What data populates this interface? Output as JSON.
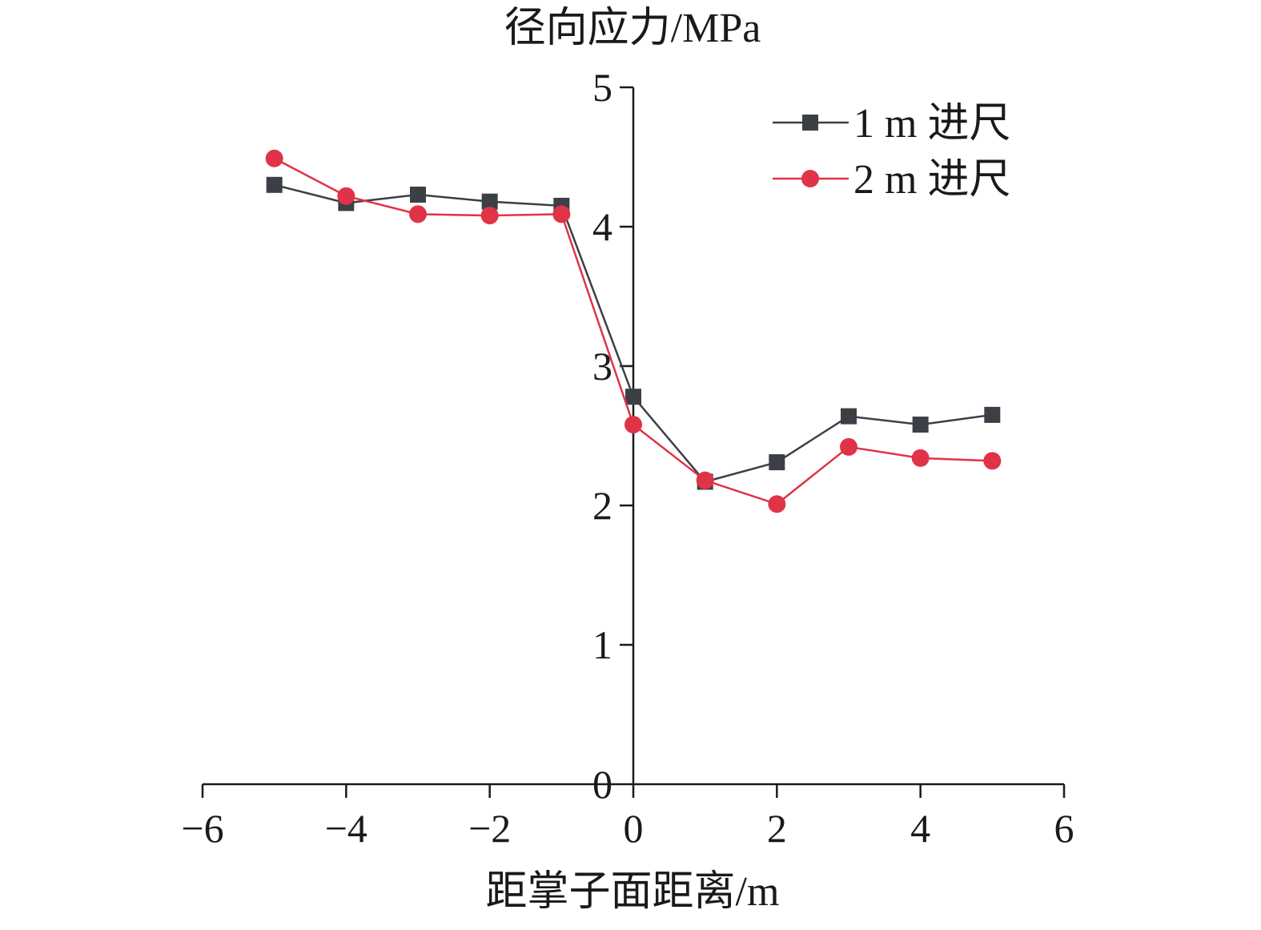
{
  "chart_data": {
    "type": "line",
    "title": "",
    "ylabel": "径向应力/MPa",
    "xlabel": "距掌子面距离/m",
    "xlim": [
      -6,
      6
    ],
    "ylim": [
      0,
      5
    ],
    "xticks": [
      -6,
      -4,
      -2,
      0,
      2,
      4,
      6
    ],
    "yticks": [
      0,
      1,
      2,
      3,
      4,
      5
    ],
    "xtick_labels": [
      "−6",
      "−4",
      "−2",
      "0",
      "2",
      "4",
      "6"
    ],
    "ytick_labels": [
      "0",
      "1",
      "2",
      "3",
      "4",
      "5"
    ],
    "grid": false,
    "legend_position": "top-right",
    "x": [
      -5,
      -4,
      -3,
      -2,
      -1,
      0,
      1,
      2,
      3,
      4,
      5
    ],
    "series": [
      {
        "name": "1 m 进尺",
        "color": "#3d3f47",
        "marker": "square",
        "values": [
          4.3,
          4.17,
          4.23,
          4.18,
          4.15,
          2.78,
          2.17,
          2.31,
          2.64,
          2.58,
          2.65
        ]
      },
      {
        "name": "2 m 进尺",
        "color": "#e03347",
        "marker": "circle",
        "values": [
          4.49,
          4.22,
          4.09,
          4.08,
          4.09,
          2.58,
          2.18,
          2.01,
          2.42,
          2.34,
          2.32
        ]
      }
    ]
  }
}
